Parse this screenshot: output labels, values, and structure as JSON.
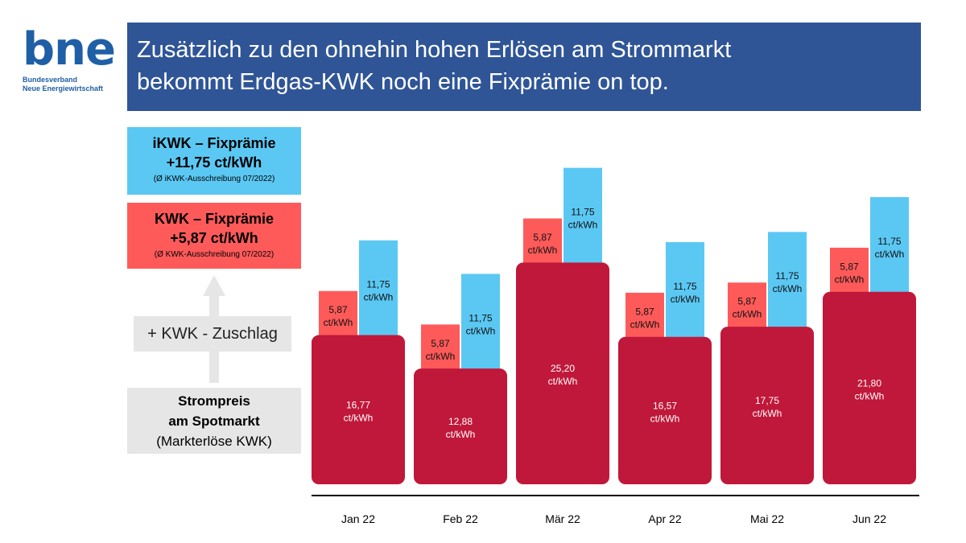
{
  "logo": {
    "text": "bne",
    "line1": "Bundesverband",
    "line2": "Neue Energiewirtschaft"
  },
  "header": {
    "title_line1": "Zusätzlich zu den ohnehin hohen Erlösen am Strommarkt",
    "title_line2": "bekommt Erdgas-KWK noch eine Fixprämie on top."
  },
  "legend": {
    "ikwk": {
      "title": "iKWK – Fixprämie",
      "value": "+11,75 ct/kWh",
      "note": "(Ø iKWK-Ausschreibung 07/2022)",
      "color": "#5bc8f3"
    },
    "kwk": {
      "title": "KWK – Fixprämie",
      "value": "+5,87 ct/kWh",
      "note": "(Ø KWK-Ausschreibung 07/2022)",
      "color": "#ff5a5a"
    },
    "zuschlag": "+ KWK - Zuschlag",
    "spot": {
      "line1": "Strompreis",
      "line2": "am Spotmarkt",
      "line3": "(Markterlöse KWK)",
      "color": "#c0183a"
    }
  },
  "chart_data": {
    "type": "bar",
    "categories": [
      "Jan 22",
      "Feb 22",
      "Mär 22",
      "Apr 22",
      "Mai 22",
      "Jun 22"
    ],
    "unit": "ct/kWh",
    "series": [
      {
        "values": [
          16.77,
          12.88,
          25.2,
          16.57,
          17.75,
          21.8
        ],
        "labels": [
          "16,77",
          "12,88",
          "25,20",
          "16,57",
          "17,75",
          "21,80"
        ],
        "color": "#c0183a"
      },
      {
        "values": [
          5.87,
          5.87,
          5.87,
          5.87,
          5.87,
          5.87
        ],
        "labels": [
          "5,87",
          "5,87",
          "5,87",
          "5,87",
          "5,87",
          "5,87"
        ],
        "color": "#ff5a5a"
      },
      {
        "values": [
          11.75,
          11.75,
          11.75,
          11.75,
          11.75,
          11.75
        ],
        "labels": [
          "11,75",
          "11,75",
          "11,75",
          "11,75",
          "11,75",
          "11,75"
        ],
        "color": "#5bc8f3"
      }
    ]
  }
}
